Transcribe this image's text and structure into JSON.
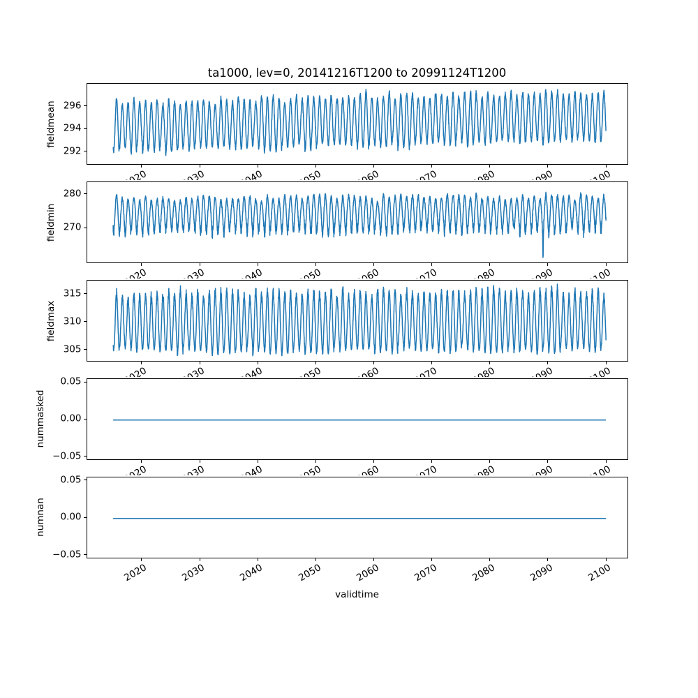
{
  "figure": {
    "title": "ta1000, lev=0, 20141216T1200 to 20991124T1200",
    "xlabel": "validtime",
    "background": "#ffffff",
    "line_color": "#1f77b4",
    "spine_color": "#000000"
  },
  "chart_data": {
    "type": "line",
    "title": "ta1000, lev=0, 20141216T1200 to 20991124T1200",
    "xlabel": "validtime",
    "grid": false,
    "legend": "none",
    "x": {
      "lim": [
        2010.5,
        2103.9
      ],
      "ticks": [
        2020,
        2030,
        2040,
        2050,
        2060,
        2070,
        2080,
        2090,
        2100
      ],
      "tick_labels": [
        "2020",
        "2030",
        "2040",
        "2050",
        "2060",
        "2070",
        "2080",
        "2090",
        "2100"
      ],
      "tick_rotation_deg": 30,
      "data_start": 2014.96,
      "data_end": 2099.9
    },
    "subplots": [
      {
        "ylabel": "fieldmean",
        "ylim": [
          290.8,
          298.0
        ],
        "yticks": [
          {
            "v": 296,
            "label": "296"
          },
          {
            "v": 294,
            "label": "294"
          },
          {
            "v": 292,
            "label": "292"
          }
        ],
        "series": {
          "kind": "seasonal",
          "samples_per_year": 60,
          "base": 294.25,
          "trend_per_year": 0.011,
          "amp": 2.1,
          "amp_jitter": 0.15,
          "noise": 0.3,
          "extra_down": 0,
          "extra_up": 0,
          "phase": 0.54,
          "seed": 42,
          "approx_annual_max": [
            296.3,
            297.6
          ],
          "approx_annual_min": [
            291.3,
            292.8
          ]
        }
      },
      {
        "ylabel": "fieldmin",
        "ylim": [
          259.6,
          283.6
        ],
        "yticks": [
          {
            "v": 280,
            "label": "280"
          },
          {
            "v": 270,
            "label": "270"
          }
        ],
        "series": {
          "kind": "seasonal",
          "samples_per_year": 60,
          "base": 274.6,
          "trend_per_year": 0.006,
          "amp": 4.2,
          "amp_jitter": 0.2,
          "noise": 0.8,
          "extra_down": 2.2,
          "extra_up": 0,
          "phase": 0.54,
          "seed": 7,
          "spike": {
            "t": 2089.04,
            "depth": -8.0,
            "width": 0.045
          },
          "approx_annual_max": [
            279.5,
            281.0
          ],
          "approx_annual_min": [
            266.0,
            269.5
          ],
          "extreme_min": 261.5
        }
      },
      {
        "ylabel": "fieldmax",
        "ylim": [
          302.8,
          317.5
        ],
        "yticks": [
          {
            "v": 315,
            "label": "315"
          },
          {
            "v": 310,
            "label": "310"
          },
          {
            "v": 305,
            "label": "305"
          }
        ],
        "series": {
          "kind": "seasonal",
          "samples_per_year": 60,
          "base": 309.6,
          "trend_per_year": 0.004,
          "amp": 4.7,
          "amp_jitter": 0.15,
          "noise": 0.5,
          "extra_down": 0,
          "extra_up": 1.2,
          "phase": 0.54,
          "seed": 99,
          "approx_annual_max": [
            314.0,
            316.5
          ],
          "approx_annual_min": [
            303.5,
            305.0
          ]
        }
      },
      {
        "ylabel": "nummasked",
        "ylim": [
          -0.055,
          0.055
        ],
        "yticks": [
          {
            "v": 0.05,
            "label": "0.05"
          },
          {
            "v": 0,
            "label": "0.00"
          },
          {
            "v": -0.05,
            "label": "−0.05"
          }
        ],
        "series": {
          "kind": "constant",
          "value": 0
        }
      },
      {
        "ylabel": "numnan",
        "ylim": [
          -0.055,
          0.055
        ],
        "yticks": [
          {
            "v": 0.05,
            "label": "0.05"
          },
          {
            "v": 0,
            "label": "0.00"
          },
          {
            "v": -0.05,
            "label": "−0.05"
          }
        ],
        "series": {
          "kind": "constant",
          "value": 0
        }
      }
    ]
  }
}
